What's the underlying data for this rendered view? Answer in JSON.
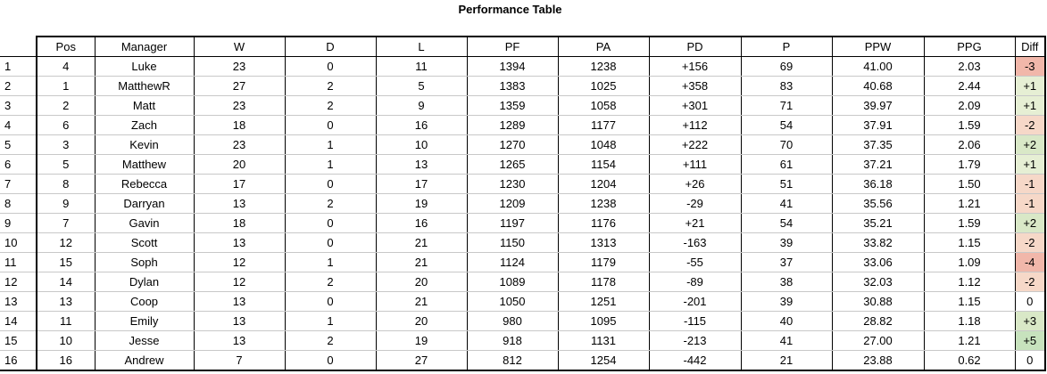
{
  "title": "Performance Table",
  "headers": [
    "Pos",
    "Manager",
    "W",
    "D",
    "L",
    "PF",
    "PA",
    "PD",
    "P",
    "PPW",
    "PPG",
    "Diff"
  ],
  "rows": [
    {
      "row": "1",
      "pos": "4",
      "manager": "Luke",
      "w": "23",
      "d": "0",
      "l": "11",
      "pf": "1394",
      "pa": "1238",
      "pd": "+156",
      "p": "69",
      "ppw": "41.00",
      "ppg": "2.03",
      "diff": "-3"
    },
    {
      "row": "2",
      "pos": "1",
      "manager": "MatthewR",
      "w": "27",
      "d": "2",
      "l": "5",
      "pf": "1383",
      "pa": "1025",
      "pd": "+358",
      "p": "83",
      "ppw": "40.68",
      "ppg": "2.44",
      "diff": "+1"
    },
    {
      "row": "3",
      "pos": "2",
      "manager": "Matt",
      "w": "23",
      "d": "2",
      "l": "9",
      "pf": "1359",
      "pa": "1058",
      "pd": "+301",
      "p": "71",
      "ppw": "39.97",
      "ppg": "2.09",
      "diff": "+1"
    },
    {
      "row": "4",
      "pos": "6",
      "manager": "Zach",
      "w": "18",
      "d": "0",
      "l": "16",
      "pf": "1289",
      "pa": "1177",
      "pd": "+112",
      "p": "54",
      "ppw": "37.91",
      "ppg": "1.59",
      "diff": "-2"
    },
    {
      "row": "5",
      "pos": "3",
      "manager": "Kevin",
      "w": "23",
      "d": "1",
      "l": "10",
      "pf": "1270",
      "pa": "1048",
      "pd": "+222",
      "p": "70",
      "ppw": "37.35",
      "ppg": "2.06",
      "diff": "+2"
    },
    {
      "row": "6",
      "pos": "5",
      "manager": "Matthew",
      "w": "20",
      "d": "1",
      "l": "13",
      "pf": "1265",
      "pa": "1154",
      "pd": "+111",
      "p": "61",
      "ppw": "37.21",
      "ppg": "1.79",
      "diff": "+1"
    },
    {
      "row": "7",
      "pos": "8",
      "manager": "Rebecca",
      "w": "17",
      "d": "0",
      "l": "17",
      "pf": "1230",
      "pa": "1204",
      "pd": "+26",
      "p": "51",
      "ppw": "36.18",
      "ppg": "1.50",
      "diff": "-1"
    },
    {
      "row": "8",
      "pos": "9",
      "manager": "Darryan",
      "w": "13",
      "d": "2",
      "l": "19",
      "pf": "1209",
      "pa": "1238",
      "pd": "-29",
      "p": "41",
      "ppw": "35.56",
      "ppg": "1.21",
      "diff": "-1"
    },
    {
      "row": "9",
      "pos": "7",
      "manager": "Gavin",
      "w": "18",
      "d": "0",
      "l": "16",
      "pf": "1197",
      "pa": "1176",
      "pd": "+21",
      "p": "54",
      "ppw": "35.21",
      "ppg": "1.59",
      "diff": "+2"
    },
    {
      "row": "10",
      "pos": "12",
      "manager": "Scott",
      "w": "13",
      "d": "0",
      "l": "21",
      "pf": "1150",
      "pa": "1313",
      "pd": "-163",
      "p": "39",
      "ppw": "33.82",
      "ppg": "1.15",
      "diff": "-2"
    },
    {
      "row": "11",
      "pos": "15",
      "manager": "Soph",
      "w": "12",
      "d": "1",
      "l": "21",
      "pf": "1124",
      "pa": "1179",
      "pd": "-55",
      "p": "37",
      "ppw": "33.06",
      "ppg": "1.09",
      "diff": "-4"
    },
    {
      "row": "12",
      "pos": "14",
      "manager": "Dylan",
      "w": "12",
      "d": "2",
      "l": "20",
      "pf": "1089",
      "pa": "1178",
      "pd": "-89",
      "p": "38",
      "ppw": "32.03",
      "ppg": "1.12",
      "diff": "-2"
    },
    {
      "row": "13",
      "pos": "13",
      "manager": "Coop",
      "w": "13",
      "d": "0",
      "l": "21",
      "pf": "1050",
      "pa": "1251",
      "pd": "-201",
      "p": "39",
      "ppw": "30.88",
      "ppg": "1.15",
      "diff": "0"
    },
    {
      "row": "14",
      "pos": "11",
      "manager": "Emily",
      "w": "13",
      "d": "1",
      "l": "20",
      "pf": "980",
      "pa": "1095",
      "pd": "-115",
      "p": "40",
      "ppw": "28.82",
      "ppg": "1.18",
      "diff": "+3"
    },
    {
      "row": "15",
      "pos": "10",
      "manager": "Jesse",
      "w": "13",
      "d": "2",
      "l": "19",
      "pf": "918",
      "pa": "1131",
      "pd": "-213",
      "p": "41",
      "ppw": "27.00",
      "ppg": "1.21",
      "diff": "+5"
    },
    {
      "row": "16",
      "pos": "16",
      "manager": "Andrew",
      "w": "7",
      "d": "0",
      "l": "27",
      "pf": "812",
      "pa": "1254",
      "pd": "-442",
      "p": "21",
      "ppw": "23.88",
      "ppg": "0.62",
      "diff": "0"
    }
  ],
  "colors": {
    "neg_strong": "#f1b7aa",
    "neg_light": "#f6d8c8",
    "neutral": "#ffffff",
    "pos_light": "#e6efd4",
    "pos_mid": "#d9e8c7",
    "pos_strong": "#c7e2bd"
  }
}
